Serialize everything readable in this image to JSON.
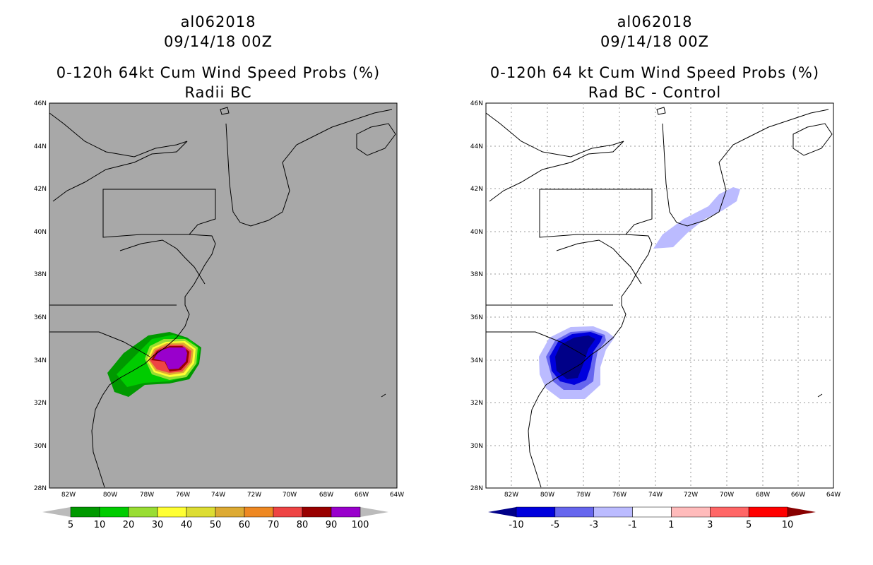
{
  "left_panel": {
    "storm_id": "al062018",
    "datetime": "09/14/18 00Z",
    "title": "0-120h 64kt Cum Wind Speed Probs (%)",
    "subtitle": "Radii BC",
    "colors": {
      "background": "#a8a8a8"
    },
    "colorbar": {
      "labels": [
        "5",
        "10",
        "20",
        "30",
        "40",
        "50",
        "60",
        "70",
        "80",
        "90",
        "100"
      ],
      "colors": [
        "#009900",
        "#00cc00",
        "#99dd33",
        "#ffff33",
        "#dddd33",
        "#ddaa33",
        "#ee8822",
        "#ee4444",
        "#990000",
        "#9900cc"
      ],
      "end_colors": [
        "#bbbbbb",
        "#bbbbbb"
      ]
    }
  },
  "right_panel": {
    "storm_id": "al062018",
    "datetime": "09/14/18 00Z",
    "title": "0-120h 64 kt Cum Wind Speed Probs (%)",
    "subtitle": "Rad BC - Control",
    "colors": {
      "background": "#ffffff"
    },
    "colorbar": {
      "labels": [
        "-10",
        "-5",
        "-3",
        "-1",
        "1",
        "3",
        "5",
        "10"
      ],
      "colors": [
        "#0000dd",
        "#6666ee",
        "#bbbbff",
        "#ffffff",
        "#ffbbbb",
        "#ff6666",
        "#ff0000"
      ],
      "end_colors": [
        "#000088",
        "#880000"
      ]
    }
  },
  "lat_labels": [
    "46N",
    "44N",
    "42N",
    "40N",
    "38N",
    "36N",
    "34N",
    "32N",
    "30N",
    "28N"
  ],
  "lon_labels": [
    "82W",
    "80W",
    "78W",
    "76W",
    "74W",
    "72W",
    "70W",
    "68W",
    "66W",
    "64W"
  ]
}
